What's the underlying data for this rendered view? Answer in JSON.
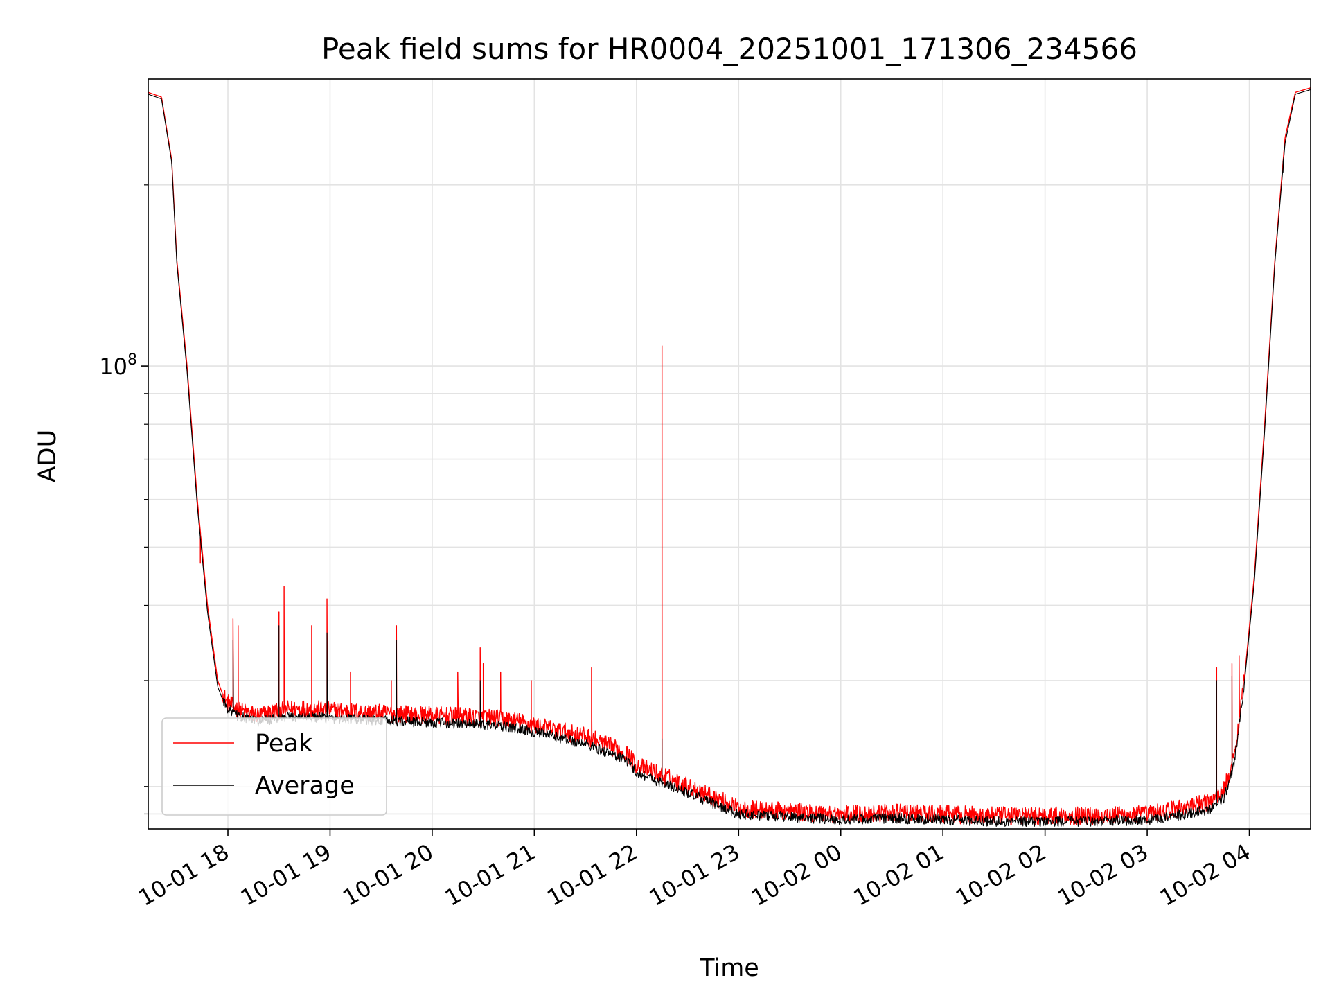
{
  "chart_data": {
    "type": "line",
    "title": "Peak field sums for HR0004_20251001_171306_234566",
    "xlabel": "Time",
    "ylabel": "ADU",
    "yscale": "log",
    "ylim": [
      17000000,
      300000000
    ],
    "xlim_hours": [
      17.22,
      28.6
    ],
    "grid": true,
    "legend_position": "lower-left",
    "x_ticks": [
      {
        "h": 18,
        "label": "10-01 18"
      },
      {
        "h": 19,
        "label": "10-01 19"
      },
      {
        "h": 20,
        "label": "10-01 20"
      },
      {
        "h": 21,
        "label": "10-01 21"
      },
      {
        "h": 22,
        "label": "10-01 22"
      },
      {
        "h": 23,
        "label": "10-01 23"
      },
      {
        "h": 24,
        "label": "10-02 00"
      },
      {
        "h": 25,
        "label": "10-02 01"
      },
      {
        "h": 26,
        "label": "10-02 02"
      },
      {
        "h": 27,
        "label": "10-02 03"
      },
      {
        "h": 28,
        "label": "10-02 04"
      }
    ],
    "y_major_ticks": [
      {
        "value": 100000000,
        "base": "10",
        "exp": "8"
      }
    ],
    "y_minor_ticks": [
      18000000,
      20000000,
      30000000,
      40000000,
      50000000,
      60000000,
      70000000,
      80000000,
      90000000,
      200000000
    ],
    "series": [
      {
        "name": "Peak",
        "color": "#ff0000",
        "points": [
          [
            17.22,
            285000000
          ],
          [
            17.35,
            280000000
          ],
          [
            17.45,
            220000000
          ],
          [
            17.5,
            150000000
          ],
          [
            17.6,
            100000000
          ],
          [
            17.7,
            60000000
          ],
          [
            17.8,
            40000000
          ],
          [
            17.9,
            30000000
          ],
          [
            17.98,
            27500000
          ],
          [
            18.1,
            26500000
          ],
          [
            18.3,
            26000000
          ],
          [
            18.5,
            26500000
          ],
          [
            18.7,
            26700000
          ],
          [
            19.0,
            26500000
          ],
          [
            19.5,
            26200000
          ],
          [
            20.0,
            26000000
          ],
          [
            20.5,
            25800000
          ],
          [
            20.8,
            25500000
          ],
          [
            21.0,
            25000000
          ],
          [
            21.5,
            24000000
          ],
          [
            21.9,
            22500000
          ],
          [
            22.0,
            21500000
          ],
          [
            22.3,
            20500000
          ],
          [
            22.6,
            19500000
          ],
          [
            22.85,
            18700000
          ],
          [
            23.0,
            18200000
          ],
          [
            23.2,
            18100000
          ],
          [
            23.5,
            18000000
          ],
          [
            24.0,
            17800000
          ],
          [
            24.5,
            17900000
          ],
          [
            25.0,
            17800000
          ],
          [
            25.5,
            17700000
          ],
          [
            26.0,
            17700000
          ],
          [
            26.5,
            17700000
          ],
          [
            27.0,
            17800000
          ],
          [
            27.3,
            18200000
          ],
          [
            27.6,
            18600000
          ],
          [
            27.75,
            19500000
          ],
          [
            27.85,
            22000000
          ],
          [
            27.95,
            30000000
          ],
          [
            28.05,
            45000000
          ],
          [
            28.15,
            80000000
          ],
          [
            28.25,
            150000000
          ],
          [
            28.35,
            240000000
          ],
          [
            28.45,
            285000000
          ],
          [
            28.6,
            290000000
          ]
        ],
        "spikes": [
          [
            17.73,
            47000000
          ],
          [
            18.05,
            38000000
          ],
          [
            18.1,
            37000000
          ],
          [
            18.5,
            39000000
          ],
          [
            18.55,
            43000000
          ],
          [
            18.82,
            37000000
          ],
          [
            18.97,
            41000000
          ],
          [
            19.2,
            31000000
          ],
          [
            19.6,
            30000000
          ],
          [
            19.65,
            37000000
          ],
          [
            20.25,
            31000000
          ],
          [
            20.47,
            34000000
          ],
          [
            20.5,
            32000000
          ],
          [
            20.67,
            31000000
          ],
          [
            20.97,
            30000000
          ],
          [
            21.56,
            31500000
          ],
          [
            22.25,
            108000000
          ],
          [
            27.68,
            31500000
          ],
          [
            27.83,
            32000000
          ],
          [
            27.9,
            33000000
          ]
        ]
      },
      {
        "name": "Average",
        "color": "#000000",
        "points": [
          [
            17.22,
            283000000
          ],
          [
            17.35,
            278000000
          ],
          [
            17.45,
            218000000
          ],
          [
            17.5,
            148000000
          ],
          [
            17.6,
            98000000
          ],
          [
            17.7,
            58500000
          ],
          [
            17.8,
            39000000
          ],
          [
            17.9,
            29300000
          ],
          [
            17.98,
            27000000
          ],
          [
            18.1,
            26000000
          ],
          [
            18.3,
            25500000
          ],
          [
            18.5,
            25800000
          ],
          [
            18.7,
            26000000
          ],
          [
            19.0,
            25800000
          ],
          [
            19.5,
            25600000
          ],
          [
            20.0,
            25400000
          ],
          [
            20.5,
            25200000
          ],
          [
            20.8,
            24900000
          ],
          [
            21.0,
            24500000
          ],
          [
            21.5,
            23400000
          ],
          [
            21.9,
            22000000
          ],
          [
            22.0,
            21000000
          ],
          [
            22.3,
            20000000
          ],
          [
            22.6,
            19100000
          ],
          [
            22.85,
            18300000
          ],
          [
            23.0,
            17900000
          ],
          [
            23.2,
            17800000
          ],
          [
            23.5,
            17700000
          ],
          [
            24.0,
            17500000
          ],
          [
            24.5,
            17600000
          ],
          [
            25.0,
            17500000
          ],
          [
            25.5,
            17400000
          ],
          [
            26.0,
            17400000
          ],
          [
            26.5,
            17400000
          ],
          [
            27.0,
            17500000
          ],
          [
            27.3,
            17800000
          ],
          [
            27.6,
            18200000
          ],
          [
            27.75,
            19000000
          ],
          [
            27.85,
            21500000
          ],
          [
            27.95,
            29500000
          ],
          [
            28.05,
            44000000
          ],
          [
            28.15,
            78000000
          ],
          [
            28.25,
            148000000
          ],
          [
            28.35,
            235000000
          ],
          [
            28.45,
            283000000
          ],
          [
            28.6,
            288000000
          ]
        ],
        "spikes": [
          [
            18.05,
            35000000
          ],
          [
            18.5,
            37000000
          ],
          [
            18.97,
            36000000
          ],
          [
            19.65,
            35000000
          ],
          [
            20.47,
            30000000
          ],
          [
            22.25,
            24000000
          ],
          [
            27.68,
            30000000
          ],
          [
            27.83,
            30500000
          ],
          [
            28.33,
            210000000
          ]
        ]
      }
    ]
  }
}
